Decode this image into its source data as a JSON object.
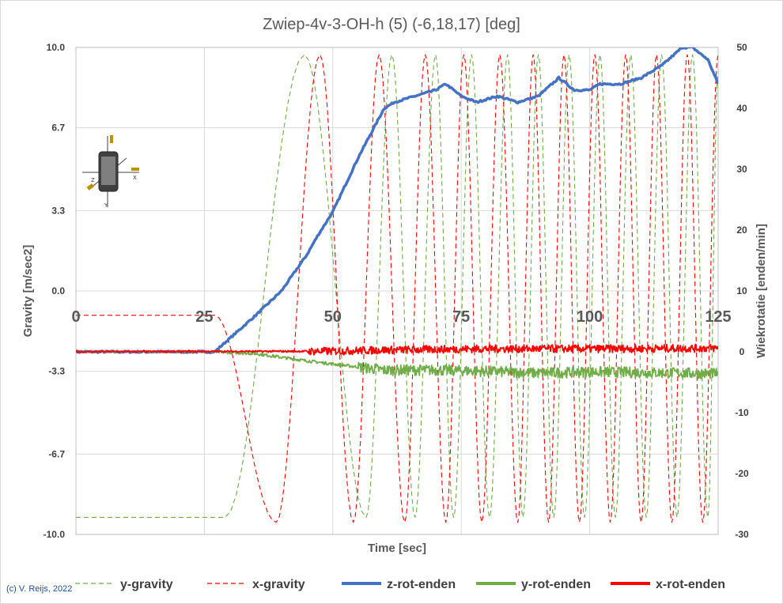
{
  "chart_data": {
    "type": "line",
    "title": "Zwiep-4v-3-OH-h (5) (-6,18,17) [deg]",
    "xlabel": "Time [sec]",
    "ylabel": "Gravity  [m/sec2]",
    "y2label": "Wiekrotatie  [enden/min]",
    "xlim": [
      0,
      125
    ],
    "ylim": [
      -10,
      10
    ],
    "y2lim": [
      -30,
      50
    ],
    "x_ticks": [
      "0",
      "25",
      "50",
      "75",
      "100",
      "125"
    ],
    "y_ticks": [
      "10.0",
      "6.7",
      "3.3",
      "0.0",
      "-3.3",
      "-6.7",
      "-10.0"
    ],
    "y2_ticks": [
      "50",
      "40",
      "30",
      "20",
      "10",
      "0",
      "-10",
      "-20",
      "-30"
    ],
    "credit": "(c) V. Reijs, 2022",
    "series": [
      {
        "name": "y-gravity",
        "axis": "left",
        "style": "dashed",
        "color": "#70ad47",
        "description": "starts at -9.3 until t=29, rises and oscillates between -9.3 and 9.7 with increasing frequency",
        "x": [
          0,
          29,
          44.5,
          56.5,
          61.5,
          66,
          70,
          73.5,
          77,
          80.5,
          84,
          87,
          90,
          93,
          96,
          99,
          102,
          105,
          108,
          111,
          114,
          117,
          120,
          123,
          125
        ],
        "values": [
          -9.3,
          -9.3,
          9.7,
          -9.3,
          9.7,
          -9.3,
          9.7,
          -9.3,
          9.7,
          -9.3,
          9.7,
          -9.3,
          9.7,
          -9.3,
          9.7,
          -9.3,
          9.7,
          -9.3,
          9.7,
          -9.3,
          9.7,
          -9.3,
          9.7,
          -9.3,
          9.0
        ]
      },
      {
        "name": "x-gravity",
        "axis": "left",
        "style": "dashed",
        "color": "#ff0000",
        "description": "flat at -1.0 until t=27, dips to -9.5 at t=39, then oscillates between 9.7 and -9.5",
        "x": [
          0,
          27,
          39,
          47.5,
          54,
          59,
          64,
          68,
          72,
          75.5,
          79,
          82.5,
          86,
          89,
          92,
          95,
          98,
          101,
          104,
          107,
          110,
          113,
          116,
          119,
          122,
          125
        ],
        "values": [
          -1.0,
          -1.0,
          -9.5,
          9.7,
          -9.5,
          9.7,
          -9.5,
          9.7,
          -9.5,
          9.7,
          -9.5,
          9.7,
          -9.5,
          9.7,
          -9.5,
          9.7,
          -9.5,
          9.7,
          -9.5,
          9.7,
          -9.5,
          9.7,
          -9.5,
          9.7,
          -9.5,
          9.7
        ]
      },
      {
        "name": "z-rot-enden",
        "axis": "right",
        "style": "solid",
        "color": "#4472c4",
        "x": [
          0,
          27,
          35,
          40,
          45,
          47,
          50,
          55,
          60,
          62,
          66,
          70,
          72,
          75,
          78,
          82,
          86,
          90,
          94,
          97,
          100,
          102,
          106,
          110,
          114,
          118,
          120,
          123,
          125
        ],
        "values": [
          0,
          0,
          6,
          10,
          16,
          19,
          23,
          32,
          40,
          41,
          42,
          43,
          44,
          42,
          41,
          42,
          41,
          42,
          45,
          43,
          43,
          44,
          44,
          45,
          47,
          50,
          50,
          48,
          44
        ]
      },
      {
        "name": "y-rot-enden",
        "axis": "right",
        "style": "solid",
        "color": "#70ad47",
        "x": [
          0,
          27,
          35,
          45,
          55,
          60,
          70,
          80,
          90,
          100,
          110,
          125
        ],
        "values": [
          0,
          0,
          -0.3,
          -1.5,
          -2.5,
          -3.0,
          -3.0,
          -3.2,
          -3.5,
          -3.3,
          -3.4,
          -3.6
        ]
      },
      {
        "name": "x-rot-enden",
        "axis": "right",
        "style": "solid",
        "color": "#ff0000",
        "x": [
          0,
          50,
          60,
          80,
          100,
          125
        ],
        "values": [
          0,
          0.1,
          0.3,
          0.5,
          0.5,
          0.6
        ]
      }
    ]
  }
}
